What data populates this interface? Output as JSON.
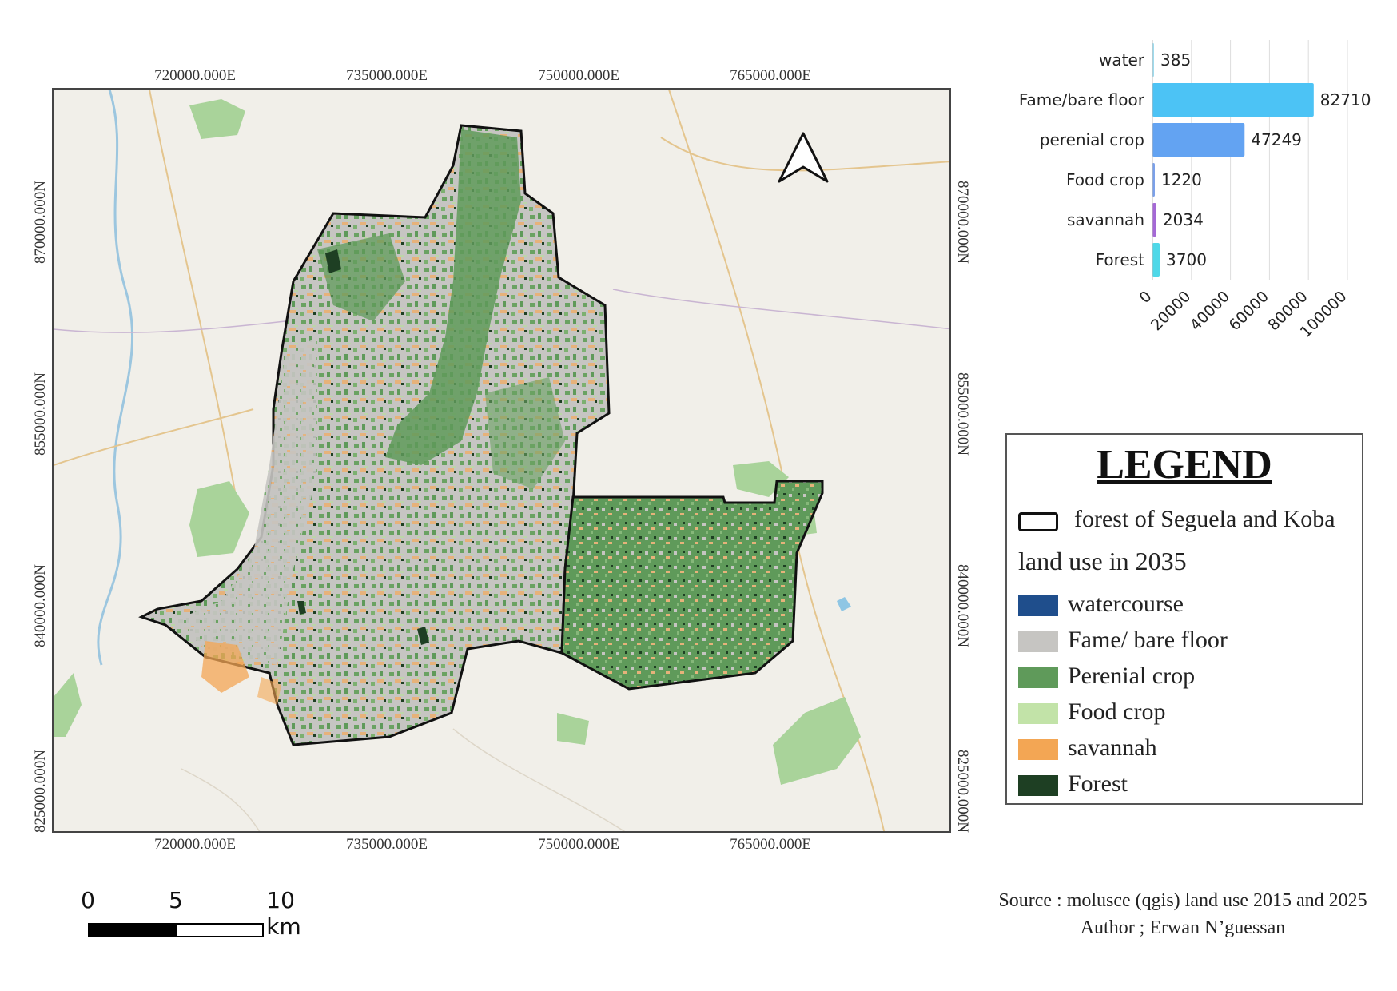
{
  "map": {
    "grid_x_labels": [
      "720000.000E",
      "735000.000E",
      "750000.000E",
      "765000.000E"
    ],
    "grid_y_labels": [
      "870000.000N",
      "855000.000N",
      "840000.000N",
      "825000.000N"
    ],
    "north_arrow": "north-arrow-icon",
    "colors": {
      "background": "#f1efe9",
      "perenial_crop": "#5f9a5a",
      "fame_bare_floor": "#c6c5c2",
      "food_crop": "#c2e3a8",
      "savannah": "#f3a654",
      "forest": "#1e3f23",
      "watercourse": "#1f4e8c",
      "boundary": "#111111"
    }
  },
  "chart_data": {
    "type": "bar",
    "orientation": "horizontal",
    "categories": [
      "water",
      "Fame/bare floor",
      "perenial crop",
      "Food crop",
      "savannah",
      "Forest"
    ],
    "values": [
      385,
      82710,
      47249,
      1220,
      2034,
      3700
    ],
    "colors": [
      "#9fdcef",
      "#4cc3f5",
      "#63a3f2",
      "#7aa0ea",
      "#a569d6",
      "#4fd8e8"
    ],
    "x_ticks": [
      "0",
      "20000",
      "40000",
      "60000",
      "80000",
      "100000"
    ],
    "xlim": [
      0,
      100000
    ],
    "grid": true
  },
  "legend": {
    "title": "LEGEND",
    "boundary_label": "forest of Seguela and Koba",
    "subtitle": "land use in 2035",
    "items": [
      {
        "label": "watercourse",
        "color": "#1f4e8c"
      },
      {
        "label": "Fame/ bare floor",
        "color": "#c6c5c2"
      },
      {
        "label": "Perenial crop",
        "color": "#5f9a5a"
      },
      {
        "label": "Food crop",
        "color": "#c2e3a8"
      },
      {
        "label": "savannah",
        "color": "#f3a654"
      },
      {
        "label": "Forest",
        "color": "#1e3f23"
      }
    ]
  },
  "scalebar": {
    "labels": [
      "0",
      "5",
      "10 km"
    ]
  },
  "source": {
    "line1": "Source : molusce (qgis) land use 2015 and 2025",
    "line2": "Author ; Erwan N’guessan"
  }
}
